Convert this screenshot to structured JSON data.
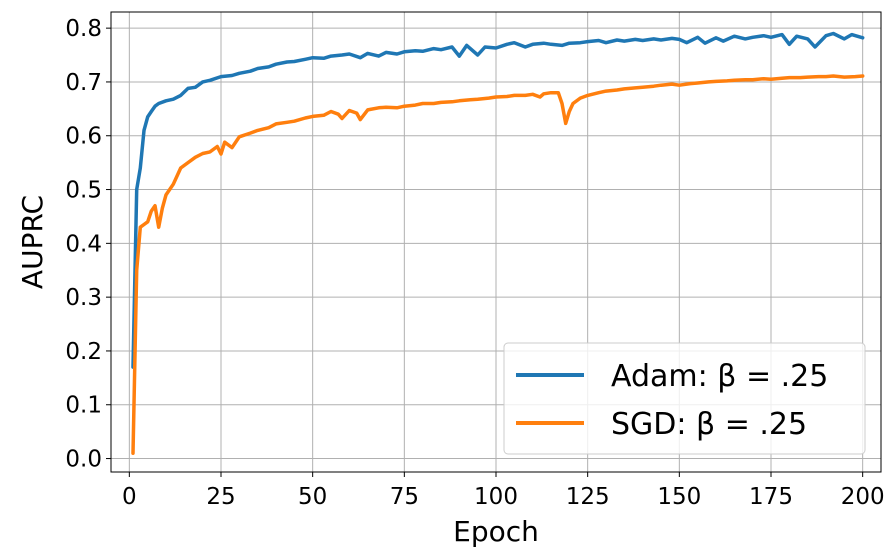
{
  "chart_data": {
    "type": "line",
    "title": "",
    "xlabel": "Epoch",
    "ylabel": "AUPRC",
    "xlim": [
      -5,
      205
    ],
    "ylim": [
      -0.025,
      0.83
    ],
    "xticks": [
      0,
      25,
      50,
      75,
      100,
      125,
      150,
      175,
      200
    ],
    "xtick_labels": [
      "0",
      "25",
      "50",
      "75",
      "100",
      "125",
      "150",
      "175",
      "200"
    ],
    "yticks": [
      0.0,
      0.1,
      0.2,
      0.3,
      0.4,
      0.5,
      0.6,
      0.7,
      0.8
    ],
    "ytick_labels": [
      "0.0",
      "0.1",
      "0.2",
      "0.3",
      "0.4",
      "0.5",
      "0.6",
      "0.7",
      "0.8"
    ],
    "grid": true,
    "legend_position": "lower-right",
    "series": [
      {
        "name": "Adam: β = .25",
        "color": "#1f77b4",
        "points": [
          [
            1,
            0.17
          ],
          [
            2,
            0.5
          ],
          [
            3,
            0.54
          ],
          [
            4,
            0.61
          ],
          [
            5,
            0.635
          ],
          [
            6,
            0.645
          ],
          [
            7,
            0.655
          ],
          [
            8,
            0.66
          ],
          [
            10,
            0.665
          ],
          [
            12,
            0.668
          ],
          [
            14,
            0.675
          ],
          [
            16,
            0.688
          ],
          [
            18,
            0.69
          ],
          [
            20,
            0.7
          ],
          [
            22,
            0.703
          ],
          [
            25,
            0.71
          ],
          [
            28,
            0.712
          ],
          [
            30,
            0.716
          ],
          [
            33,
            0.72
          ],
          [
            35,
            0.725
          ],
          [
            38,
            0.728
          ],
          [
            40,
            0.733
          ],
          [
            43,
            0.737
          ],
          [
            45,
            0.738
          ],
          [
            48,
            0.742
          ],
          [
            50,
            0.745
          ],
          [
            53,
            0.744
          ],
          [
            55,
            0.748
          ],
          [
            58,
            0.75
          ],
          [
            60,
            0.752
          ],
          [
            63,
            0.745
          ],
          [
            65,
            0.753
          ],
          [
            68,
            0.748
          ],
          [
            70,
            0.755
          ],
          [
            73,
            0.752
          ],
          [
            75,
            0.756
          ],
          [
            78,
            0.758
          ],
          [
            80,
            0.757
          ],
          [
            83,
            0.762
          ],
          [
            85,
            0.76
          ],
          [
            88,
            0.765
          ],
          [
            90,
            0.748
          ],
          [
            92,
            0.768
          ],
          [
            95,
            0.75
          ],
          [
            97,
            0.765
          ],
          [
            100,
            0.763
          ],
          [
            103,
            0.77
          ],
          [
            105,
            0.773
          ],
          [
            108,
            0.765
          ],
          [
            110,
            0.77
          ],
          [
            113,
            0.772
          ],
          [
            115,
            0.77
          ],
          [
            118,
            0.768
          ],
          [
            120,
            0.772
          ],
          [
            123,
            0.773
          ],
          [
            125,
            0.775
          ],
          [
            128,
            0.777
          ],
          [
            130,
            0.773
          ],
          [
            133,
            0.778
          ],
          [
            135,
            0.776
          ],
          [
            138,
            0.779
          ],
          [
            140,
            0.777
          ],
          [
            143,
            0.78
          ],
          [
            145,
            0.778
          ],
          [
            148,
            0.781
          ],
          [
            150,
            0.779
          ],
          [
            152,
            0.773
          ],
          [
            155,
            0.783
          ],
          [
            157,
            0.772
          ],
          [
            160,
            0.782
          ],
          [
            162,
            0.776
          ],
          [
            165,
            0.785
          ],
          [
            168,
            0.78
          ],
          [
            170,
            0.783
          ],
          [
            173,
            0.786
          ],
          [
            175,
            0.783
          ],
          [
            178,
            0.788
          ],
          [
            180,
            0.77
          ],
          [
            182,
            0.785
          ],
          [
            185,
            0.78
          ],
          [
            187,
            0.765
          ],
          [
            190,
            0.786
          ],
          [
            192,
            0.79
          ],
          [
            195,
            0.78
          ],
          [
            197,
            0.788
          ],
          [
            200,
            0.782
          ]
        ]
      },
      {
        "name": "SGD: β = .25",
        "color": "#ff7f0e",
        "points": [
          [
            1,
            0.01
          ],
          [
            2,
            0.35
          ],
          [
            3,
            0.43
          ],
          [
            4,
            0.435
          ],
          [
            5,
            0.44
          ],
          [
            6,
            0.46
          ],
          [
            7,
            0.47
          ],
          [
            8,
            0.43
          ],
          [
            9,
            0.465
          ],
          [
            10,
            0.49
          ],
          [
            12,
            0.51
          ],
          [
            14,
            0.54
          ],
          [
            16,
            0.55
          ],
          [
            18,
            0.56
          ],
          [
            20,
            0.567
          ],
          [
            22,
            0.57
          ],
          [
            24,
            0.58
          ],
          [
            25,
            0.566
          ],
          [
            26,
            0.588
          ],
          [
            28,
            0.578
          ],
          [
            30,
            0.598
          ],
          [
            33,
            0.605
          ],
          [
            35,
            0.61
          ],
          [
            38,
            0.615
          ],
          [
            40,
            0.622
          ],
          [
            43,
            0.625
          ],
          [
            45,
            0.627
          ],
          [
            48,
            0.633
          ],
          [
            50,
            0.636
          ],
          [
            53,
            0.638
          ],
          [
            55,
            0.645
          ],
          [
            57,
            0.64
          ],
          [
            58,
            0.632
          ],
          [
            60,
            0.647
          ],
          [
            62,
            0.642
          ],
          [
            63,
            0.63
          ],
          [
            65,
            0.648
          ],
          [
            68,
            0.652
          ],
          [
            70,
            0.653
          ],
          [
            73,
            0.652
          ],
          [
            75,
            0.655
          ],
          [
            78,
            0.657
          ],
          [
            80,
            0.66
          ],
          [
            83,
            0.66
          ],
          [
            85,
            0.662
          ],
          [
            88,
            0.663
          ],
          [
            90,
            0.665
          ],
          [
            93,
            0.667
          ],
          [
            95,
            0.668
          ],
          [
            98,
            0.67
          ],
          [
            100,
            0.672
          ],
          [
            103,
            0.673
          ],
          [
            105,
            0.675
          ],
          [
            108,
            0.675
          ],
          [
            110,
            0.677
          ],
          [
            112,
            0.672
          ],
          [
            113,
            0.678
          ],
          [
            115,
            0.68
          ],
          [
            117,
            0.68
          ],
          [
            118,
            0.66
          ],
          [
            119,
            0.623
          ],
          [
            120,
            0.645
          ],
          [
            121,
            0.66
          ],
          [
            123,
            0.67
          ],
          [
            125,
            0.675
          ],
          [
            128,
            0.68
          ],
          [
            130,
            0.683
          ],
          [
            133,
            0.685
          ],
          [
            135,
            0.687
          ],
          [
            138,
            0.689
          ],
          [
            140,
            0.69
          ],
          [
            143,
            0.692
          ],
          [
            145,
            0.694
          ],
          [
            148,
            0.696
          ],
          [
            150,
            0.694
          ],
          [
            153,
            0.697
          ],
          [
            155,
            0.698
          ],
          [
            158,
            0.7
          ],
          [
            160,
            0.701
          ],
          [
            163,
            0.702
          ],
          [
            165,
            0.703
          ],
          [
            168,
            0.704
          ],
          [
            170,
            0.704
          ],
          [
            173,
            0.706
          ],
          [
            175,
            0.705
          ],
          [
            178,
            0.707
          ],
          [
            180,
            0.708
          ],
          [
            183,
            0.708
          ],
          [
            185,
            0.709
          ],
          [
            188,
            0.71
          ],
          [
            190,
            0.71
          ],
          [
            192,
            0.711
          ],
          [
            195,
            0.709
          ],
          [
            198,
            0.71
          ],
          [
            200,
            0.711
          ]
        ]
      }
    ]
  }
}
